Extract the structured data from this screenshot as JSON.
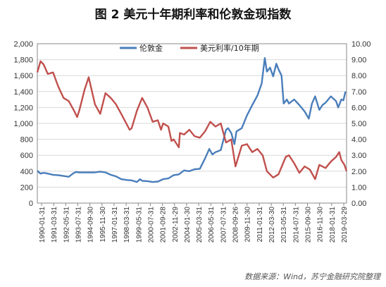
{
  "chart_data": {
    "type": "line",
    "title": "图 2 美元十年期利率和伦敦金现指数",
    "source": "数据来源：Wind，苏宁金融研究院整理",
    "y_left": {
      "min": 0,
      "max": 2000,
      "ticks": [
        "0",
        "200",
        "400",
        "600",
        "800",
        "1,000",
        "1,200",
        "1,400",
        "1,600",
        "1,800",
        "2,000"
      ]
    },
    "y_right": {
      "min": 0,
      "max": 10,
      "ticks": [
        "0.00",
        "1.00",
        "2.00",
        "3.00",
        "4.00",
        "5.00",
        "6.00",
        "7.00",
        "8.00",
        "9.00",
        "10.00"
      ]
    },
    "x_range": [
      1990.0,
      2019.5
    ],
    "x_tick_labels": [
      "1990-01-31",
      "1991-03-31",
      "1992-05-31",
      "1993-07-31",
      "1994-09-30",
      "1995-11-30",
      "1997-01-31",
      "1998-03-31",
      "1999-05-31",
      "2000-07-31",
      "2001-09-28",
      "2002-11-29",
      "2004-01-30",
      "2005-03-31",
      "2006-05-31",
      "2007-07-31",
      "2008-09-26",
      "2009-11-30",
      "2011-01-31",
      "2012-03-30",
      "2013-05-31",
      "2014-07-31",
      "2015-09-30",
      "2016-11-30",
      "2018-01-31",
      "2019-03-29"
    ],
    "grid": true,
    "legend_position": "top",
    "series": [
      {
        "name": "伦敦金",
        "axis": "left",
        "color": "#4a7ebb",
        "x": [
          1990.0,
          1990.3,
          1990.6,
          1991.0,
          1991.5,
          1992.0,
          1992.5,
          1993.0,
          1993.5,
          1993.7,
          1994.0,
          1994.5,
          1995.0,
          1995.5,
          1996.0,
          1996.5,
          1997.0,
          1997.5,
          1998.0,
          1998.5,
          1999.0,
          1999.5,
          1999.8,
          2000.0,
          2000.5,
          2001.0,
          2001.5,
          2002.0,
          2002.5,
          2003.0,
          2003.5,
          2004.0,
          2004.5,
          2005.0,
          2005.5,
          2006.0,
          2006.4,
          2006.7,
          2007.0,
          2007.5,
          2008.0,
          2008.2,
          2008.5,
          2008.8,
          2009.0,
          2009.5,
          2010.0,
          2010.5,
          2011.0,
          2011.4,
          2011.7,
          2011.9,
          2012.2,
          2012.5,
          2012.8,
          2013.0,
          2013.3,
          2013.5,
          2013.8,
          2014.0,
          2014.5,
          2015.0,
          2015.5,
          2015.9,
          2016.2,
          2016.5,
          2016.9,
          2017.2,
          2017.5,
          2018.0,
          2018.5,
          2018.7,
          2019.0,
          2019.2,
          2019.4
        ],
        "values": [
          405,
          370,
          380,
          370,
          355,
          350,
          340,
          330,
          380,
          390,
          385,
          385,
          385,
          385,
          395,
          385,
          355,
          335,
          300,
          290,
          285,
          265,
          300,
          280,
          275,
          265,
          270,
          300,
          310,
          350,
          360,
          410,
          400,
          425,
          430,
          560,
          680,
          610,
          640,
          665,
          920,
          940,
          880,
          740,
          900,
          940,
          1100,
          1230,
          1350,
          1500,
          1820,
          1650,
          1700,
          1590,
          1750,
          1680,
          1600,
          1250,
          1300,
          1250,
          1300,
          1230,
          1150,
          1060,
          1250,
          1340,
          1170,
          1230,
          1260,
          1340,
          1280,
          1200,
          1300,
          1290,
          1400
        ]
      },
      {
        "name": "美元利率/10年期",
        "axis": "right",
        "color": "#c0504d",
        "x": [
          1990.0,
          1990.3,
          1990.6,
          1991.0,
          1991.5,
          1992.0,
          1992.5,
          1993.0,
          1993.5,
          1993.8,
          1994.0,
          1994.5,
          1994.9,
          1995.5,
          1996.0,
          1996.5,
          1997.0,
          1997.5,
          1998.0,
          1998.8,
          1999.0,
          1999.5,
          2000.0,
          2000.5,
          2001.0,
          2001.5,
          2001.8,
          2002.0,
          2002.5,
          2002.8,
          2003.0,
          2003.5,
          2003.6,
          2004.0,
          2004.5,
          2005.0,
          2005.5,
          2006.0,
          2006.5,
          2007.0,
          2007.5,
          2008.0,
          2008.5,
          2008.9,
          2009.0,
          2009.5,
          2010.0,
          2010.5,
          2011.0,
          2011.5,
          2011.9,
          2012.5,
          2013.0,
          2013.7,
          2014.0,
          2014.5,
          2015.0,
          2015.5,
          2016.0,
          2016.5,
          2016.9,
          2017.5,
          2018.0,
          2018.5,
          2018.8,
          2019.0,
          2019.3,
          2019.5
        ],
        "values": [
          8.2,
          8.9,
          8.7,
          8.1,
          8.2,
          7.3,
          6.6,
          6.4,
          5.8,
          5.4,
          5.8,
          7.1,
          7.9,
          6.2,
          5.6,
          6.9,
          6.6,
          6.2,
          5.6,
          4.6,
          4.7,
          5.8,
          6.6,
          6.0,
          5.1,
          5.2,
          4.6,
          5.0,
          4.8,
          3.9,
          4.0,
          3.5,
          4.4,
          4.3,
          4.6,
          4.2,
          4.1,
          4.5,
          5.1,
          4.8,
          5.0,
          3.8,
          4.0,
          2.3,
          2.5,
          3.6,
          3.7,
          3.2,
          3.4,
          3.0,
          2.0,
          1.6,
          1.8,
          2.9,
          3.0,
          2.5,
          1.9,
          2.3,
          2.1,
          1.5,
          2.4,
          2.2,
          2.6,
          2.9,
          3.2,
          2.7,
          2.4,
          2.0
        ]
      }
    ]
  }
}
